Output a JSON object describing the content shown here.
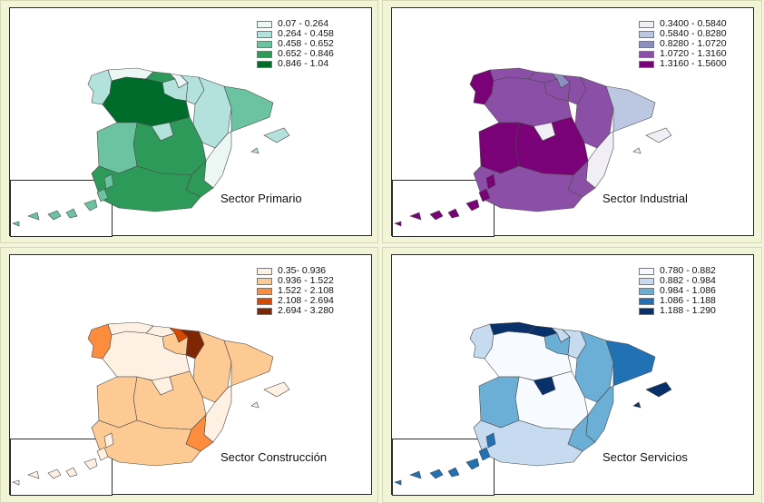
{
  "panels": [
    {
      "id": "primario",
      "title": "Sector Primario",
      "legend": [
        "0.07 - 0.264",
        "0.264 - 0.458",
        "0.458 - 0.652",
        "0.652 - 0.846",
        "0.846 - 1.04"
      ],
      "colors": [
        "#ecf7f4",
        "#b3e2dc",
        "#6bc3a2",
        "#2e9a59",
        "#006c2c"
      ],
      "regions": {
        "galicia": 1,
        "asturias": 0,
        "cantabria": 3,
        "paisvasco": 0,
        "navarra": 1,
        "rioja": 1,
        "aragon": 1,
        "cataluna": 2,
        "castillaleon": 4,
        "madrid": 1,
        "castillalamancha": 3,
        "valencia": 0,
        "murcia": 3,
        "extremadura": 2,
        "andalucia": 3,
        "baleares": 1,
        "canarias": 2
      }
    },
    {
      "id": "industrial",
      "title": "Sector Industrial",
      "legend": [
        "0.3400 - 0.5840",
        "0.5840 - 0.8280",
        "0.8280 - 1.0720",
        "1.0720 - 1.3160",
        "1.3160 - 1.5600"
      ],
      "colors": [
        "#f1eef6",
        "#bcc8e1",
        "#8c8fc0",
        "#8b4fa8",
        "#7a0177"
      ],
      "regions": {
        "galicia": 4,
        "asturias": 3,
        "cantabria": 3,
        "paisvasco": 2,
        "navarra": 3,
        "rioja": 3,
        "aragon": 3,
        "cataluna": 1,
        "castillaleon": 3,
        "madrid": 0,
        "castillalamancha": 4,
        "valencia": 0,
        "murcia": 3,
        "extremadura": 4,
        "andalucia": 3,
        "baleares": 0,
        "canarias": 4
      }
    },
    {
      "id": "construccion",
      "title": "Sector Construcción",
      "legend": [
        "0.35- 0.936",
        "0.936 - 1.522",
        "1.522 - 2.108",
        "2.108 - 2.694",
        "2.694 - 3.280"
      ],
      "colors": [
        "#fef0e2",
        "#fdca93",
        "#fd8d3c",
        "#d94701",
        "#7f2704"
      ],
      "regions": {
        "galicia": 2,
        "asturias": 0,
        "cantabria": 0,
        "paisvasco": 3,
        "navarra": 4,
        "rioja": 1,
        "aragon": 1,
        "cataluna": 1,
        "castillaleon": 0,
        "madrid": 0,
        "castillalamancha": 1,
        "valencia": 0,
        "murcia": 2,
        "extremadura": 1,
        "andalucia": 1,
        "baleares": 0,
        "canarias": 0
      }
    },
    {
      "id": "servicios",
      "title": "Sector Servicios",
      "legend": [
        "0.780 - 0.882",
        "0.882 - 0.984",
        "0.984 - 1.086",
        "1.086 - 1.188",
        "1.188 - 1.290"
      ],
      "colors": [
        "#f7fbff",
        "#c6dbef",
        "#6baed6",
        "#2171b5",
        "#08306b"
      ],
      "regions": {
        "galicia": 1,
        "asturias": 4,
        "cantabria": 4,
        "paisvasco": 1,
        "navarra": 1,
        "rioja": 2,
        "aragon": 2,
        "cataluna": 3,
        "castillaleon": 0,
        "madrid": 4,
        "castillalamancha": 0,
        "valencia": 2,
        "murcia": 2,
        "extremadura": 2,
        "andalucia": 1,
        "baleares": 4,
        "canarias": 3
      }
    }
  ]
}
